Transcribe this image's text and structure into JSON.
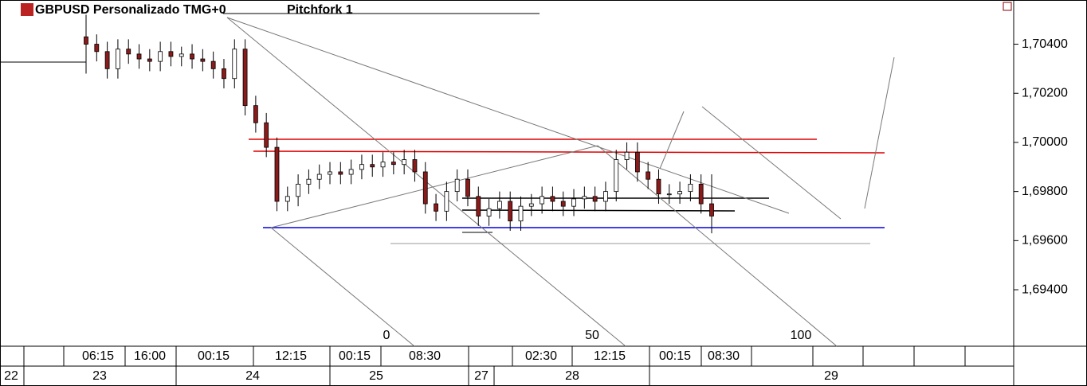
{
  "chart_data": {
    "type": "candlestick",
    "symbol_label": "GBPUSD Personalizado TMG+0",
    "object_label": "Pitchfork 1",
    "up_color": "#ffffff",
    "down_color": "#8b1a1a",
    "ylim": [
      1.6917,
      1.7058
    ],
    "yticks": [
      {
        "value": 1.694,
        "label": "1,69400"
      },
      {
        "value": 1.696,
        "label": "1,69600"
      },
      {
        "value": 1.698,
        "label": "1,69800"
      },
      {
        "value": 1.7,
        "label": "1,70000"
      },
      {
        "value": 1.702,
        "label": "1,70200"
      },
      {
        "value": 1.704,
        "label": "1,70400"
      }
    ],
    "open": [
      1.7043,
      1.704,
      1.7037,
      1.703,
      1.7038,
      1.7036,
      1.7034,
      1.7033,
      1.7037,
      1.7035,
      1.7036,
      1.7034,
      1.7033,
      1.703,
      1.7026,
      1.7038,
      1.7015,
      1.7008,
      1.6998,
      1.6976,
      1.6978,
      1.6983,
      1.6985,
      1.6987,
      1.6988,
      1.6987,
      1.6989,
      1.6991,
      1.699,
      1.6992,
      1.6991,
      1.6993,
      1.6988,
      1.6975,
      1.6972,
      1.698,
      1.6985,
      1.6978,
      1.697,
      1.6973,
      1.6976,
      1.6968,
      1.6974,
      1.6975,
      1.6978,
      1.6976,
      1.6974,
      1.6977,
      1.6978,
      1.6976,
      1.698,
      1.6993,
      1.6996,
      1.6988,
      1.6985,
      1.6979,
      1.6979,
      1.698,
      1.6983,
      1.6975
    ],
    "high": [
      1.7052,
      1.7044,
      1.7041,
      1.7042,
      1.7042,
      1.704,
      1.7038,
      1.7041,
      1.7041,
      1.7039,
      1.704,
      1.7038,
      1.7037,
      1.7034,
      1.7042,
      1.7042,
      1.7019,
      1.7012,
      1.7002,
      1.6982,
      1.6987,
      1.6989,
      1.6991,
      1.6992,
      1.6992,
      1.6993,
      1.6995,
      1.6995,
      1.6996,
      1.6996,
      1.6997,
      1.6997,
      1.6992,
      1.6979,
      1.6984,
      1.6989,
      1.6989,
      1.6982,
      1.6977,
      1.698,
      1.698,
      1.6978,
      1.6979,
      1.6982,
      1.6982,
      1.698,
      1.6981,
      1.6982,
      1.6982,
      1.6984,
      1.6997,
      1.7,
      1.7,
      1.6992,
      1.6989,
      1.6983,
      1.6984,
      1.6987,
      1.6987,
      1.6987
    ],
    "low": [
      1.7028,
      1.7033,
      1.7026,
      1.7026,
      1.7032,
      1.703,
      1.7029,
      1.7029,
      1.7031,
      1.7031,
      1.703,
      1.7029,
      1.7026,
      1.7022,
      1.7022,
      1.7011,
      1.7004,
      1.6994,
      1.6972,
      1.6972,
      1.6974,
      1.6979,
      1.6981,
      1.6983,
      1.6983,
      1.6983,
      1.6985,
      1.6986,
      1.6986,
      1.6987,
      1.6987,
      1.6984,
      1.6971,
      1.6968,
      1.6968,
      1.6976,
      1.6974,
      1.6966,
      1.6966,
      1.6969,
      1.6964,
      1.6964,
      1.697,
      1.6971,
      1.6972,
      1.697,
      1.697,
      1.6973,
      1.6972,
      1.6972,
      1.6976,
      1.6989,
      1.6984,
      1.6981,
      1.6975,
      1.6975,
      1.6975,
      1.6976,
      1.6971,
      1.6963
    ],
    "close": [
      1.704,
      1.7037,
      1.703,
      1.7038,
      1.7036,
      1.7034,
      1.7033,
      1.7037,
      1.7035,
      1.7036,
      1.7034,
      1.7033,
      1.703,
      1.7026,
      1.7038,
      1.7015,
      1.7008,
      1.6998,
      1.6976,
      1.6978,
      1.6983,
      1.6985,
      1.6987,
      1.6988,
      1.6987,
      1.6989,
      1.6991,
      1.699,
      1.6992,
      1.6991,
      1.6993,
      1.6988,
      1.6975,
      1.6972,
      1.698,
      1.6985,
      1.6978,
      1.697,
      1.6973,
      1.6976,
      1.6968,
      1.6974,
      1.6975,
      1.6978,
      1.6976,
      1.6974,
      1.6977,
      1.6978,
      1.6976,
      1.698,
      1.6993,
      1.6996,
      1.6988,
      1.6985,
      1.6979,
      1.6979,
      1.698,
      1.6983,
      1.6975,
      1.697
    ],
    "fib_labels": [
      "0",
      "50",
      "100"
    ],
    "time_labels": [
      "06:15",
      "16:00",
      "00:15",
      "12:15",
      "00:15",
      "08:30",
      "02:30",
      "12:15",
      "00:15",
      "08:30"
    ],
    "date_labels": [
      "22",
      "23",
      "24",
      "25",
      "27",
      "28",
      "29"
    ]
  }
}
